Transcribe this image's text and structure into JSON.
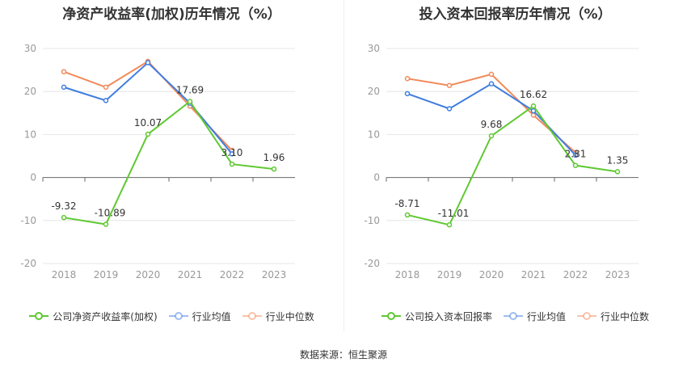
{
  "source_text": "数据来源：恒生聚源",
  "colors": {
    "company": "#5fc932",
    "avg": "#3f7de0",
    "median": "#f28a5a"
  },
  "chart_data": [
    {
      "type": "line",
      "title": "净资产收益率(加权)历年情况（%）",
      "categories": [
        "2018",
        "2019",
        "2020",
        "2021",
        "2022",
        "2023"
      ],
      "ylim": [
        -20,
        30
      ],
      "yticks": [
        30,
        20,
        10,
        0,
        -10,
        -20
      ],
      "grid": true,
      "legend_position": "bottom",
      "series": [
        {
          "name": "公司净资产收益率(加权)",
          "key": "company",
          "values": [
            -9.32,
            -10.89,
            10.07,
            17.69,
            3.1,
            1.96
          ],
          "labels": [
            "-9.32",
            "-10.89",
            "10.07",
            "17.69",
            "3.10",
            "1.96"
          ]
        },
        {
          "name": "行业均值",
          "key": "avg",
          "values": [
            21.0,
            17.9,
            26.7,
            17.3,
            5.5,
            null
          ]
        },
        {
          "name": "行业中位数",
          "key": "median",
          "values": [
            24.6,
            21.0,
            27.0,
            16.6,
            6.3,
            null
          ]
        }
      ]
    },
    {
      "type": "line",
      "title": "投入资本回报率历年情况（%）",
      "categories": [
        "2018",
        "2019",
        "2020",
        "2021",
        "2022",
        "2023"
      ],
      "ylim": [
        -20,
        30
      ],
      "yticks": [
        30,
        20,
        10,
        0,
        -10,
        -20
      ],
      "grid": true,
      "legend_position": "bottom",
      "series": [
        {
          "name": "公司投入资本回报率",
          "key": "company",
          "values": [
            -8.71,
            -11.01,
            9.68,
            16.62,
            2.81,
            1.35
          ],
          "labels": [
            "-8.71",
            "-11.01",
            "9.68",
            "16.62",
            "2.81",
            "1.35"
          ]
        },
        {
          "name": "行业均值",
          "key": "avg",
          "values": [
            19.5,
            16.0,
            21.8,
            15.5,
            5.2,
            null
          ]
        },
        {
          "name": "行业中位数",
          "key": "median",
          "values": [
            23.0,
            21.4,
            24.0,
            14.5,
            5.8,
            null
          ]
        }
      ]
    }
  ]
}
